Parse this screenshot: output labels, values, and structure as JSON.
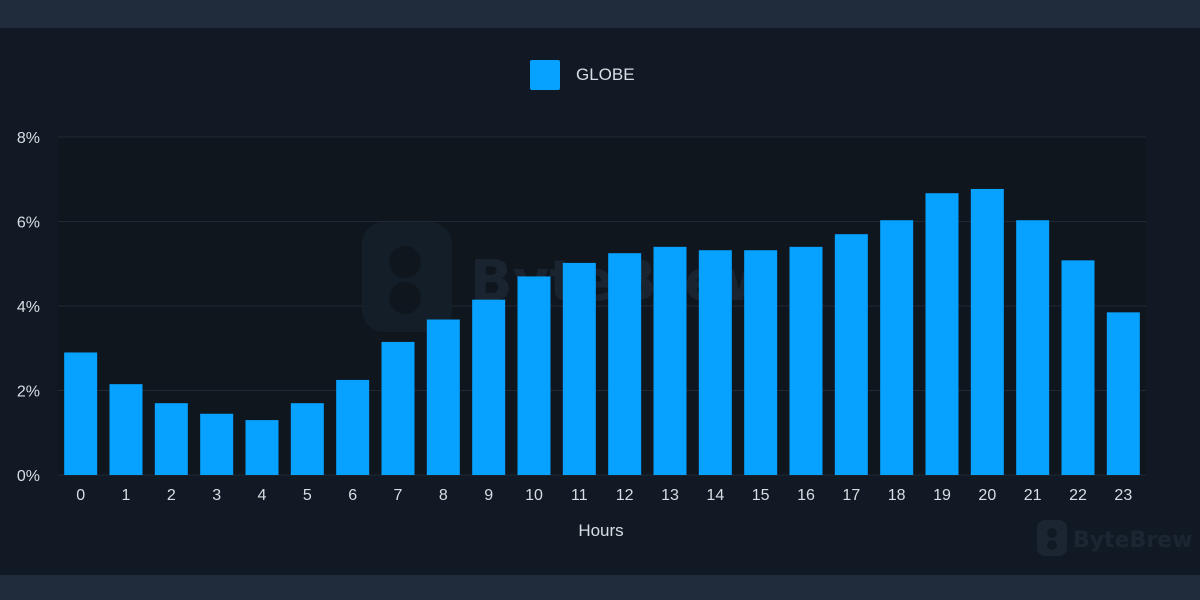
{
  "colors": {
    "bar": "#07a2ff",
    "panel_bg": "#111a24",
    "plot_bg": "#0f161e",
    "grid": "#1f2833",
    "text": "#d8dde3"
  },
  "legend": {
    "label": "GLOBE"
  },
  "watermark": {
    "text": "ByteBrew"
  },
  "chart_data": {
    "type": "bar",
    "categories": [
      "0",
      "1",
      "2",
      "3",
      "4",
      "5",
      "6",
      "7",
      "8",
      "9",
      "10",
      "11",
      "12",
      "13",
      "14",
      "15",
      "16",
      "17",
      "18",
      "19",
      "20",
      "21",
      "22",
      "23"
    ],
    "series": [
      {
        "name": "GLOBE",
        "values": [
          2.9,
          2.15,
          1.7,
          1.45,
          1.3,
          1.7,
          2.25,
          3.15,
          3.68,
          4.15,
          4.7,
          5.02,
          5.25,
          5.4,
          5.32,
          5.32,
          5.4,
          5.7,
          6.03,
          6.67,
          6.77,
          6.03,
          5.08,
          3.85
        ]
      }
    ],
    "ylim": [
      0,
      8
    ],
    "yticks": [
      0,
      2,
      4,
      6,
      8
    ],
    "ytick_labels": [
      "0%",
      "2%",
      "4%",
      "6%",
      "8%"
    ],
    "xlabel": "Hours",
    "ylabel": "",
    "grid": true,
    "legend_position": "top-center"
  }
}
